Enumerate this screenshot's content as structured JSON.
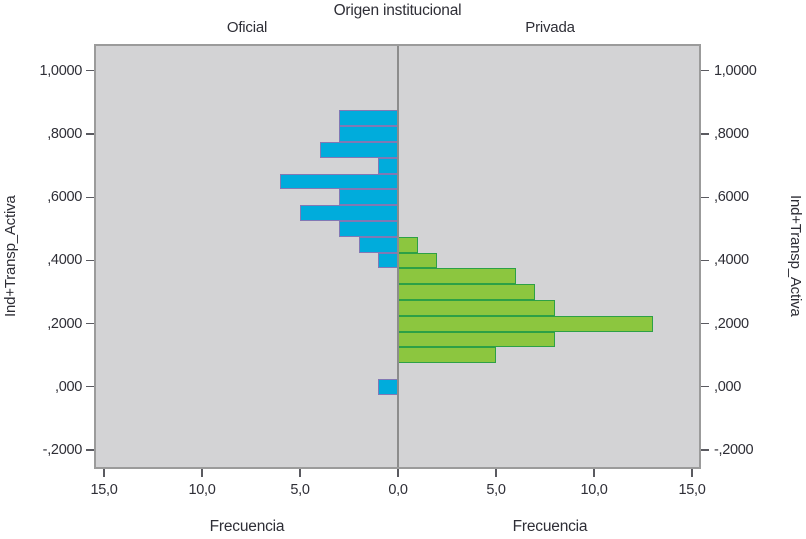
{
  "chart_data": {
    "type": "bar",
    "variant": "back-to-back-histogram",
    "title": "Origen institucional",
    "panel_header": {
      "left": "Oficial",
      "right": "Privada"
    },
    "x_axis": {
      "title": "Frecuencia",
      "ticks": {
        "values": [
          0,
          5,
          10,
          15
        ],
        "labels": [
          "0,0",
          "5,0",
          "10,0",
          "15,0"
        ]
      },
      "max_per_side": 15.5,
      "note": "left panel axis runs 15,0 to 0,0; right panel 0,0 to 15,0; 0,0 shared at center"
    },
    "y_axis": {
      "title": "Ind+Transp_Activa",
      "ticks": [
        {
          "value": 1.0,
          "label": "1,0000"
        },
        {
          "value": 0.8,
          "label": ",8000"
        },
        {
          "value": 0.6,
          "label": ",6000"
        },
        {
          "value": 0.4,
          "label": ",4000"
        },
        {
          "value": 0.2,
          "label": ",2000"
        },
        {
          "value": 0.0,
          "label": ",000"
        },
        {
          "value": -0.2,
          "label": "-,2000"
        }
      ],
      "range": [
        -0.26,
        1.085
      ]
    },
    "bin_width": 0.05,
    "series": [
      {
        "name": "Oficial",
        "side": "left",
        "fill": "#00acdc",
        "border": "#8278b4",
        "bins": [
          {
            "center": 0.85,
            "frequency": 3
          },
          {
            "center": 0.8,
            "frequency": 3
          },
          {
            "center": 0.75,
            "frequency": 4
          },
          {
            "center": 0.7,
            "frequency": 1
          },
          {
            "center": 0.65,
            "frequency": 6
          },
          {
            "center": 0.6,
            "frequency": 3
          },
          {
            "center": 0.55,
            "frequency": 5
          },
          {
            "center": 0.5,
            "frequency": 3
          },
          {
            "center": 0.45,
            "frequency": 2
          },
          {
            "center": 0.4,
            "frequency": 1
          },
          {
            "center": 0.0,
            "frequency": 1
          }
        ]
      },
      {
        "name": "Privada",
        "side": "right",
        "fill": "#8cc63f",
        "border": "#2da046",
        "bins": [
          {
            "center": 0.45,
            "frequency": 1
          },
          {
            "center": 0.4,
            "frequency": 2
          },
          {
            "center": 0.35,
            "frequency": 6
          },
          {
            "center": 0.3,
            "frequency": 7
          },
          {
            "center": 0.25,
            "frequency": 8
          },
          {
            "center": 0.2,
            "frequency": 13
          },
          {
            "center": 0.15,
            "frequency": 8
          },
          {
            "center": 0.1,
            "frequency": 5
          }
        ]
      }
    ],
    "colors": {
      "plot_bg": "#d3d3d5",
      "frame": "#9b9b9b",
      "divider": "#8c8c8c",
      "text": "#2e2e36",
      "tick": "#5a5a60"
    }
  }
}
